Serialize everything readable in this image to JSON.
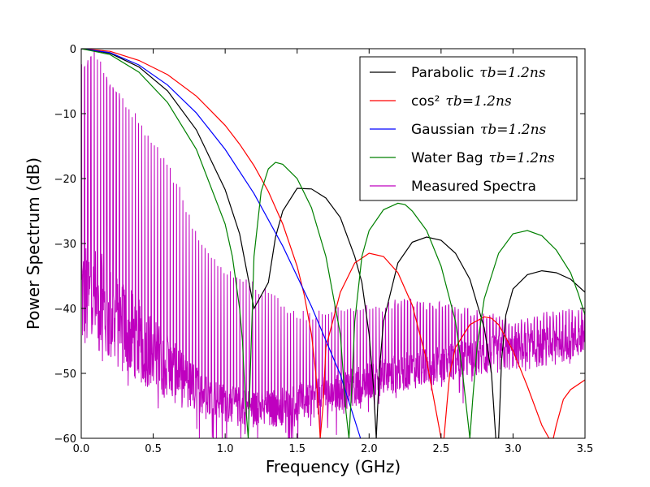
{
  "chart_data": {
    "type": "line",
    "title": "",
    "xlabel": "Frequency (GHz)",
    "ylabel": "Power Spectrum (dB)",
    "xlim": [
      0.0,
      3.5
    ],
    "ylim": [
      -60,
      0
    ],
    "xticks": [
      "0.0",
      "0.5",
      "1.0",
      "1.5",
      "2.0",
      "2.5",
      "3.0",
      "3.5"
    ],
    "yticks": [
      "0",
      "−10",
      "−20",
      "−30",
      "−40",
      "−50",
      "−60"
    ],
    "grid": false,
    "legend_position": "top-right",
    "series": [
      {
        "name": "Parabolic",
        "tau_label": "τb=1.2ns",
        "color": "#000000",
        "x": [
          0.0,
          0.2,
          0.4,
          0.6,
          0.8,
          1.0,
          1.1,
          1.2,
          1.3,
          1.35,
          1.4,
          1.5,
          1.6,
          1.7,
          1.8,
          1.9,
          1.95,
          2.0,
          2.03,
          2.05,
          2.07,
          2.1,
          2.2,
          2.3,
          2.4,
          2.5,
          2.6,
          2.7,
          2.8,
          2.85,
          2.88,
          2.9,
          2.92,
          2.95,
          3.0,
          3.1,
          3.2,
          3.3,
          3.4,
          3.5
        ],
        "y": [
          0.0,
          -0.7,
          -2.8,
          -6.5,
          -12.5,
          -21.7,
          -28.5,
          -40.0,
          -36.0,
          -29.0,
          -25.0,
          -21.5,
          -21.6,
          -23.0,
          -26.0,
          -32.0,
          -36.0,
          -44.0,
          -52.0,
          -60.0,
          -50.0,
          -42.0,
          -33.0,
          -29.8,
          -29.0,
          -29.5,
          -31.5,
          -35.5,
          -43.0,
          -50.0,
          -60.0,
          -60.0,
          -48.0,
          -41.0,
          -37.0,
          -34.8,
          -34.2,
          -34.5,
          -35.5,
          -37.5
        ]
      },
      {
        "name": "cos²",
        "tau_label": "τb=1.2ns",
        "color": "#ff0000",
        "x": [
          0.0,
          0.2,
          0.4,
          0.6,
          0.8,
          1.0,
          1.1,
          1.2,
          1.3,
          1.4,
          1.5,
          1.55,
          1.6,
          1.63,
          1.65,
          1.66,
          1.68,
          1.7,
          1.8,
          1.9,
          2.0,
          2.1,
          2.2,
          2.3,
          2.4,
          2.45,
          2.5,
          2.52,
          2.54,
          2.56,
          2.6,
          2.7,
          2.8,
          2.85,
          2.9,
          3.0,
          3.1,
          3.2,
          3.25,
          3.28,
          3.3,
          3.35,
          3.4,
          3.5
        ],
        "y": [
          0.0,
          -0.4,
          -1.8,
          -4.0,
          -7.3,
          -11.8,
          -14.7,
          -18.0,
          -22.0,
          -27.0,
          -33.5,
          -38.0,
          -44.0,
          -50.0,
          -56.0,
          -60.0,
          -55.0,
          -46.0,
          -37.5,
          -33.0,
          -31.5,
          -32.0,
          -34.5,
          -39.5,
          -48.0,
          -54.0,
          -60.0,
          -60.0,
          -55.0,
          -50.0,
          -46.0,
          -42.5,
          -41.3,
          -41.5,
          -42.5,
          -46.5,
          -52.0,
          -58.0,
          -60.0,
          -60.0,
          -58.0,
          -54.0,
          -52.5,
          -51.0
        ]
      },
      {
        "name": "Gaussian",
        "tau_label": "τb=1.2ns",
        "color": "#0000ff",
        "x": [
          0.0,
          0.2,
          0.4,
          0.6,
          0.8,
          1.0,
          1.2,
          1.4,
          1.6,
          1.8,
          1.94
        ],
        "y": [
          0.0,
          -0.6,
          -2.5,
          -5.6,
          -9.9,
          -15.5,
          -22.3,
          -30.4,
          -39.7,
          -50.2,
          -60.0
        ]
      },
      {
        "name": "Water Bag",
        "tau_label": "τb=1.2ns",
        "color": "#008000",
        "x": [
          0.0,
          0.2,
          0.4,
          0.6,
          0.8,
          1.0,
          1.05,
          1.1,
          1.12,
          1.14,
          1.16,
          1.2,
          1.25,
          1.3,
          1.35,
          1.4,
          1.5,
          1.6,
          1.7,
          1.8,
          1.82,
          1.84,
          1.86,
          1.88,
          1.9,
          1.95,
          2.0,
          2.1,
          2.2,
          2.25,
          2.3,
          2.4,
          2.5,
          2.6,
          2.65,
          2.68,
          2.7,
          2.72,
          2.75,
          2.8,
          2.9,
          3.0,
          3.1,
          3.2,
          3.3,
          3.4,
          3.45,
          3.5
        ],
        "y": [
          0.0,
          -0.9,
          -3.6,
          -8.3,
          -15.5,
          -27.0,
          -32.0,
          -40.0,
          -45.0,
          -54.0,
          -60.0,
          -32.0,
          -22.0,
          -18.5,
          -17.5,
          -17.8,
          -20.0,
          -24.5,
          -32.0,
          -44.0,
          -50.0,
          -56.0,
          -60.0,
          -52.0,
          -42.0,
          -32.0,
          -28.0,
          -24.8,
          -23.8,
          -24.0,
          -25.0,
          -28.0,
          -33.5,
          -42.0,
          -50.0,
          -56.0,
          -60.0,
          -54.0,
          -46.0,
          -38.5,
          -31.5,
          -28.5,
          -28.0,
          -28.8,
          -31.0,
          -34.5,
          -37.5,
          -41.0
        ]
      },
      {
        "name": "Measured Spectra",
        "color": "#bf00bf",
        "x": [
          0.0,
          0.05,
          0.1,
          0.15,
          0.2,
          0.3,
          0.4,
          0.5,
          0.6,
          0.7,
          0.8,
          0.9,
          1.0,
          1.1,
          1.2,
          1.3,
          1.4,
          1.5,
          1.6,
          1.7,
          1.8,
          1.9,
          2.0,
          2.1,
          2.2,
          2.3,
          2.4,
          2.5,
          2.6,
          2.7,
          2.8,
          2.9,
          3.0,
          3.1,
          3.2,
          3.3,
          3.4,
          3.5
        ],
        "baseline": [
          -38.0,
          -38.5,
          -39.0,
          -40.0,
          -41.0,
          -43.0,
          -45.0,
          -47.0,
          -49.0,
          -51.0,
          -52.5,
          -53.5,
          -54.5,
          -55.0,
          -55.5,
          -55.5,
          -55.0,
          -54.5,
          -54.0,
          -53.5,
          -53.0,
          -52.0,
          -51.0,
          -50.5,
          -50.0,
          -49.5,
          -49.0,
          -48.5,
          -48.0,
          -48.0,
          -47.5,
          -47.0,
          -46.5,
          -46.5,
          -46.0,
          -45.5,
          -45.0,
          -44.5
        ],
        "peaks": [
          -2.0,
          -1.0,
          0.0,
          -2.0,
          -5.0,
          -7.5,
          -10.5,
          -14.0,
          -17.5,
          -22.0,
          -28.0,
          -31.0,
          -33.5,
          -34.5,
          -36.0,
          -37.0,
          -39.0,
          -40.0,
          -40.5,
          -40.0,
          -39.0,
          -39.0,
          -39.0,
          -39.0,
          -38.5,
          -38.5,
          -39.0,
          -39.0,
          -39.5,
          -40.0,
          -40.5,
          -41.0,
          -41.5,
          -41.5,
          -40.5,
          -40.0,
          -40.0,
          -40.0
        ],
        "peak_spacing_ghz": 0.022
      }
    ]
  }
}
